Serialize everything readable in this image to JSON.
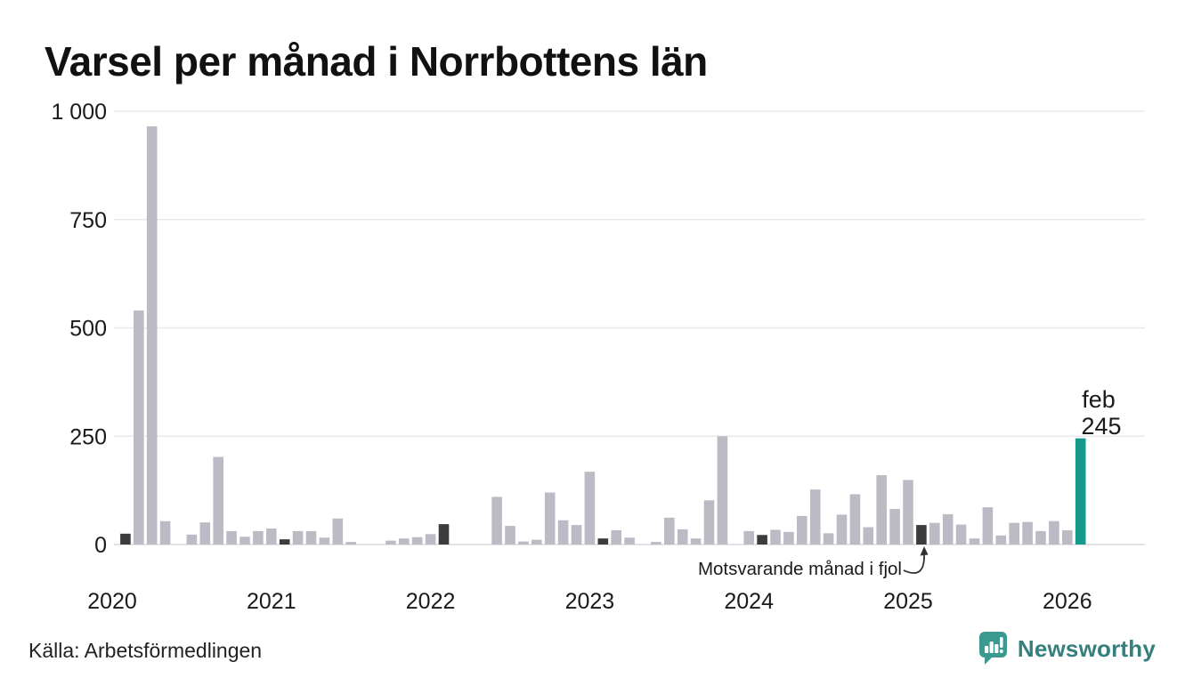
{
  "title": "Varsel per månad i Norrbottens län",
  "source": "Källa: Arbetsförmedlingen",
  "branding": {
    "name": "Newsworthy"
  },
  "annotation": {
    "text": "Motsvarande månad i fjol"
  },
  "highlight": {
    "month": "feb",
    "value": "245"
  },
  "colors": {
    "background": "#ffffff",
    "text": "#1a1a1a",
    "bar_base": "#bdbac6",
    "bar_fjol": "#3c3c3c",
    "bar_current": "#16998a",
    "grid": "#e9e8ef",
    "baseline": "#d9d8e0",
    "annotation_arrow": "#333333",
    "brand_icon": "#3b9a90",
    "brand_text": "#35807c"
  },
  "chart_data": {
    "type": "bar",
    "title": "Varsel per månad i Norrbottens län",
    "xlabel": "",
    "ylabel": "",
    "ylim": [
      0,
      1000
    ],
    "grid": "horizontal",
    "legend": "none",
    "ytick_values": [
      0,
      250,
      500,
      750,
      1000
    ],
    "ytick_labels": [
      "0",
      "250",
      "500",
      "750",
      "1 000"
    ],
    "year_ticks": [
      "2020",
      "2021",
      "2022",
      "2023",
      "2024",
      "2025",
      "2026"
    ],
    "highlighted_point": {
      "month": "2026-02",
      "label": "feb",
      "value": 245
    },
    "fjol_note": "Dark bars mark February of each year; annotation points at 2025-02",
    "months": [
      "2020-01",
      "2020-02",
      "2020-03",
      "2020-04",
      "2020-05",
      "2020-06",
      "2020-07",
      "2020-08",
      "2020-09",
      "2020-10",
      "2020-11",
      "2020-12",
      "2021-01",
      "2021-02",
      "2021-03",
      "2021-04",
      "2021-05",
      "2021-06",
      "2021-07",
      "2021-08",
      "2021-09",
      "2021-10",
      "2021-11",
      "2021-12",
      "2022-01",
      "2022-02",
      "2022-03",
      "2022-04",
      "2022-05",
      "2022-06",
      "2022-07",
      "2022-08",
      "2022-09",
      "2022-10",
      "2022-11",
      "2022-12",
      "2023-01",
      "2023-02",
      "2023-03",
      "2023-04",
      "2023-05",
      "2023-06",
      "2023-07",
      "2023-08",
      "2023-09",
      "2023-10",
      "2023-11",
      "2023-12",
      "2024-01",
      "2024-02",
      "2024-03",
      "2024-04",
      "2024-05",
      "2024-06",
      "2024-07",
      "2024-08",
      "2024-09",
      "2024-10",
      "2024-11",
      "2024-12",
      "2025-01",
      "2025-02",
      "2025-03",
      "2025-04",
      "2025-05",
      "2025-06",
      "2025-07",
      "2025-08",
      "2025-09",
      "2025-10",
      "2025-11",
      "2025-12",
      "2026-01",
      "2026-02"
    ],
    "values": [
      0,
      25,
      540,
      965,
      54,
      0,
      23,
      51,
      202,
      31,
      18,
      31,
      37,
      12,
      31,
      31,
      16,
      60,
      6,
      0,
      0,
      9,
      14,
      17,
      24,
      47,
      0,
      0,
      0,
      110,
      43,
      7,
      11,
      120,
      56,
      45,
      168,
      14,
      33,
      16,
      0,
      6,
      62,
      35,
      14,
      102,
      250,
      0,
      31,
      22,
      34,
      29,
      66,
      127,
      26,
      69,
      116,
      40,
      160,
      82,
      149,
      45,
      50,
      70,
      46,
      14,
      86,
      21,
      50,
      52,
      31,
      54,
      33,
      245
    ],
    "styles": [
      "base",
      "fjol",
      "base",
      "base",
      "base",
      "base",
      "base",
      "base",
      "base",
      "base",
      "base",
      "base",
      "base",
      "fjol",
      "base",
      "base",
      "base",
      "base",
      "base",
      "base",
      "base",
      "base",
      "base",
      "base",
      "base",
      "fjol",
      "base",
      "base",
      "base",
      "base",
      "base",
      "base",
      "base",
      "base",
      "base",
      "base",
      "base",
      "fjol",
      "base",
      "base",
      "base",
      "base",
      "base",
      "base",
      "base",
      "base",
      "base",
      "base",
      "base",
      "fjol",
      "base",
      "base",
      "base",
      "base",
      "base",
      "base",
      "base",
      "base",
      "base",
      "base",
      "base",
      "fjol",
      "base",
      "base",
      "base",
      "base",
      "base",
      "base",
      "base",
      "base",
      "base",
      "base",
      "base",
      "current"
    ]
  }
}
